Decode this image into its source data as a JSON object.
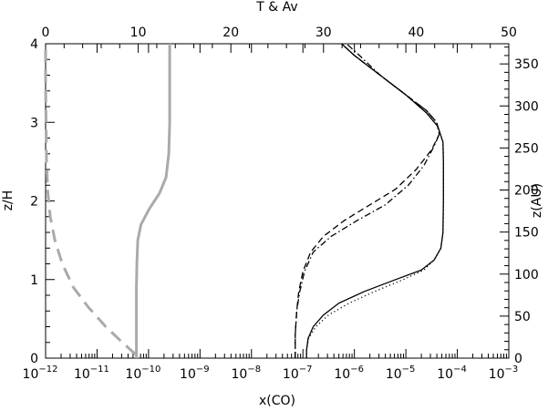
{
  "chart_data": {
    "type": "line",
    "axes": {
      "bottom": {
        "label": "x(CO)",
        "scale": "log",
        "range": [
          -12,
          -3
        ],
        "ticks": [
          -12,
          -11,
          -10,
          -9,
          -8,
          -7,
          -6,
          -5,
          -4,
          -3
        ],
        "tick_labels": [
          "10",
          "10",
          "10",
          "10",
          "10",
          "10",
          "10",
          "10",
          "10",
          "10"
        ],
        "tick_exponents": [
          "−12",
          "−11",
          "−10",
          "−9",
          "−8",
          "−7",
          "−6",
          "−5",
          "−4",
          "−3"
        ]
      },
      "top": {
        "label": "T & Av",
        "scale": "linear",
        "range": [
          0,
          50
        ],
        "ticks": [
          0,
          10,
          20,
          30,
          40,
          50
        ],
        "tick_labels": [
          "0",
          "10",
          "20",
          "30",
          "40",
          "50"
        ]
      },
      "left": {
        "label": "z/H",
        "scale": "linear",
        "range": [
          0,
          4
        ],
        "ticks": [
          0,
          1,
          2,
          3,
          4
        ],
        "tick_labels": [
          "0",
          "1",
          "2",
          "3",
          "4"
        ]
      },
      "right": {
        "label": "z(AU)",
        "scale": "linear",
        "range": [
          0,
          374
        ],
        "ticks": [
          0,
          50,
          100,
          150,
          200,
          250,
          300,
          350
        ],
        "tick_labels": [
          "0",
          "50",
          "100",
          "150",
          "200",
          "250",
          "300",
          "350"
        ]
      }
    },
    "series": [
      {
        "axis": "bottom",
        "style": "solid",
        "color": "#000000",
        "points": [
          [
            -6.93,
            0.0
          ],
          [
            -6.93,
            0.1
          ],
          [
            -6.9,
            0.25
          ],
          [
            -6.8,
            0.4
          ],
          [
            -6.6,
            0.55
          ],
          [
            -6.3,
            0.7
          ],
          [
            -5.8,
            0.85
          ],
          [
            -5.2,
            1.0
          ],
          [
            -4.7,
            1.12
          ],
          [
            -4.45,
            1.25
          ],
          [
            -4.32,
            1.4
          ],
          [
            -4.28,
            1.6
          ],
          [
            -4.27,
            2.0
          ],
          [
            -4.27,
            2.5
          ],
          [
            -4.28,
            2.75
          ],
          [
            -4.38,
            2.95
          ],
          [
            -4.6,
            3.12
          ],
          [
            -5.0,
            3.35
          ],
          [
            -5.5,
            3.6
          ],
          [
            -6.0,
            3.85
          ],
          [
            -6.25,
            4.0
          ]
        ]
      },
      {
        "axis": "bottom",
        "style": "dotted",
        "color": "#000000",
        "points": [
          [
            -6.93,
            0.0
          ],
          [
            -6.93,
            0.1
          ],
          [
            -6.89,
            0.25
          ],
          [
            -6.75,
            0.4
          ],
          [
            -6.5,
            0.55
          ],
          [
            -6.1,
            0.7
          ],
          [
            -5.6,
            0.85
          ],
          [
            -5.05,
            1.0
          ],
          [
            -4.65,
            1.12
          ],
          [
            -4.45,
            1.25
          ],
          [
            -4.32,
            1.4
          ],
          [
            -4.28,
            1.6
          ],
          [
            -4.27,
            2.0
          ],
          [
            -4.27,
            2.5
          ],
          [
            -4.28,
            2.75
          ],
          [
            -4.38,
            2.95
          ],
          [
            -4.6,
            3.12
          ],
          [
            -5.0,
            3.35
          ],
          [
            -5.5,
            3.6
          ],
          [
            -6.0,
            3.85
          ],
          [
            -6.25,
            4.0
          ]
        ]
      },
      {
        "axis": "bottom",
        "style": "dashed",
        "color": "#000000",
        "points": [
          [
            -7.15,
            0.0
          ],
          [
            -7.15,
            0.3
          ],
          [
            -7.12,
            0.6
          ],
          [
            -7.08,
            0.85
          ],
          [
            -7.0,
            1.1
          ],
          [
            -6.85,
            1.35
          ],
          [
            -6.6,
            1.55
          ],
          [
            -6.2,
            1.75
          ],
          [
            -5.7,
            1.95
          ],
          [
            -5.2,
            2.15
          ],
          [
            -4.8,
            2.4
          ],
          [
            -4.5,
            2.65
          ],
          [
            -4.35,
            2.85
          ],
          [
            -4.4,
            3.0
          ],
          [
            -4.6,
            3.15
          ],
          [
            -5.0,
            3.35
          ],
          [
            -5.5,
            3.6
          ],
          [
            -6.0,
            3.85
          ],
          [
            -6.25,
            4.0
          ]
        ]
      },
      {
        "axis": "bottom",
        "style": "dashdot",
        "color": "#000000",
        "points": [
          [
            -7.15,
            0.0
          ],
          [
            -7.15,
            0.3
          ],
          [
            -7.12,
            0.6
          ],
          [
            -7.06,
            0.85
          ],
          [
            -6.97,
            1.1
          ],
          [
            -6.8,
            1.35
          ],
          [
            -6.45,
            1.55
          ],
          [
            -5.95,
            1.75
          ],
          [
            -5.4,
            1.95
          ],
          [
            -4.95,
            2.2
          ],
          [
            -4.65,
            2.45
          ],
          [
            -4.45,
            2.7
          ],
          [
            -4.35,
            2.85
          ],
          [
            -4.4,
            3.0
          ],
          [
            -4.6,
            3.15
          ],
          [
            -5.0,
            3.35
          ],
          [
            -5.5,
            3.6
          ],
          [
            -5.9,
            3.85
          ],
          [
            -6.15,
            4.0
          ]
        ]
      },
      {
        "axis": "top",
        "style": "solid",
        "color": "#aaaaaa",
        "points": [
          [
            9.8,
            0.0
          ],
          [
            9.8,
            0.3
          ],
          [
            9.8,
            0.6
          ],
          [
            9.8,
            0.9
          ],
          [
            9.85,
            1.2
          ],
          [
            9.95,
            1.5
          ],
          [
            10.3,
            1.7
          ],
          [
            11.2,
            1.9
          ],
          [
            12.3,
            2.1
          ],
          [
            13.0,
            2.3
          ],
          [
            13.3,
            2.6
          ],
          [
            13.4,
            3.0
          ],
          [
            13.4,
            3.5
          ],
          [
            13.4,
            4.0
          ]
        ]
      },
      {
        "axis": "top",
        "style": "dashed",
        "color": "#aaaaaa",
        "points": [
          [
            9.7,
            0.05
          ],
          [
            8.3,
            0.2
          ],
          [
            6.5,
            0.4
          ],
          [
            4.6,
            0.65
          ],
          [
            3.0,
            0.9
          ],
          [
            1.8,
            1.2
          ],
          [
            1.0,
            1.5
          ],
          [
            0.5,
            1.8
          ],
          [
            0.25,
            2.1
          ],
          [
            0.1,
            2.5
          ],
          [
            0.05,
            3.0
          ],
          [
            0.0,
            3.5
          ],
          [
            0.0,
            4.0
          ]
        ]
      }
    ]
  }
}
